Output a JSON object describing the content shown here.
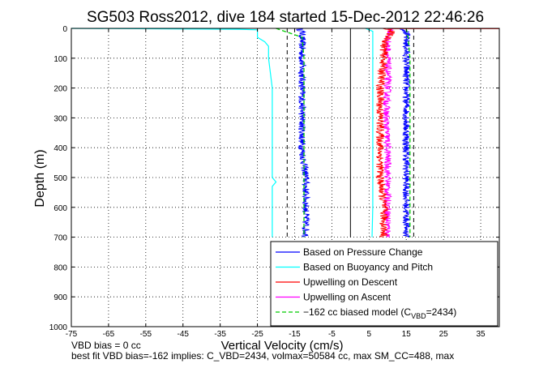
{
  "chart_data": {
    "type": "line",
    "title": "SG503 Ross2012, dive 184 started 15-Dec-2012 22:46:26",
    "xlabel": "Vertical Velocity (cm/s)",
    "ylabel": "Depth (m)",
    "xlim": [
      -75,
      40
    ],
    "ylim": [
      1000,
      0
    ],
    "y_reversed": true,
    "grid": true,
    "grid_style": "dotted",
    "xticks": [
      "-75",
      "-65",
      "-55",
      "-45",
      "-35",
      "-25",
      "-15",
      "-5",
      "5",
      "15",
      "25",
      "35"
    ],
    "xtick_values": [
      -75,
      -65,
      -55,
      -45,
      -35,
      -25,
      -15,
      -5,
      5,
      15,
      25,
      35
    ],
    "yticks": [
      "0",
      "100",
      "200",
      "300",
      "400",
      "500",
      "600",
      "700",
      "800",
      "900",
      "1000"
    ],
    "ytick_values": [
      0,
      100,
      200,
      300,
      400,
      500,
      600,
      700,
      800,
      900,
      1000
    ],
    "legend_position": "bottom-right",
    "legend": [
      {
        "label": "Based on Pressure Change",
        "color": "#0000ff",
        "style": "solid"
      },
      {
        "label": "Based on Buoyancy and Pitch",
        "color": "#00ffff",
        "style": "solid"
      },
      {
        "label": "Upwelling on Descent",
        "color": "#ff0000",
        "style": "solid"
      },
      {
        "label": "Upwelling on Ascent",
        "color": "#ff00ff",
        "style": "solid"
      },
      {
        "label": "−162 cc biased model (C",
        "sub": "VBD",
        "label_tail": "=2434)",
        "color": "#00cc00",
        "style": "dashed"
      }
    ],
    "series": [
      {
        "color": "#0000ff",
        "noise": 1.0,
        "descent": true,
        "depth": [
          0,
          10,
          30,
          60,
          100,
          200,
          300,
          400,
          500,
          600,
          650,
          700
        ],
        "x": [
          -14,
          -13,
          -13,
          -13,
          -13,
          -13,
          -13,
          -13,
          -12,
          -12,
          -12,
          -12
        ]
      },
      {
        "color": "#00ffff",
        "noise": 0.0,
        "descent": true,
        "depth": [
          0,
          3,
          5,
          30,
          45,
          60,
          100,
          200,
          300,
          400,
          500,
          515,
          530,
          600,
          700
        ],
        "x": [
          -75,
          -30,
          -25,
          -25,
          -23,
          -22,
          -22,
          -21,
          -21,
          -21,
          -21,
          -20,
          -21,
          -21,
          -21
        ]
      },
      {
        "color": "#00cc00",
        "noise": 0.0,
        "dashed": true,
        "descent": true,
        "depth": [
          0,
          30,
          100,
          300,
          500,
          700
        ],
        "x": [
          -20,
          -13,
          -12.5,
          -12.5,
          -12.5,
          -12.5
        ]
      },
      {
        "color": "#0000ff",
        "noise": 1.0,
        "depth": [
          0,
          10,
          30,
          60,
          100,
          200,
          300,
          400,
          500,
          600,
          650,
          700
        ],
        "x": [
          14,
          15,
          15,
          15,
          15,
          15,
          15,
          15,
          15,
          15,
          15,
          15
        ]
      },
      {
        "color": "#00ffff",
        "noise": 0.0,
        "depth": [
          0,
          5,
          10,
          30,
          60,
          100,
          300,
          500,
          600,
          700
        ],
        "x": [
          4,
          5,
          6,
          6,
          6,
          6,
          6,
          6,
          6,
          5.8
        ]
      },
      {
        "color": "#00cc00",
        "noise": 0.0,
        "dashed": true,
        "depth": [
          0,
          30,
          100,
          300,
          500,
          700
        ],
        "x": [
          15,
          15.5,
          16,
          16,
          16,
          16
        ]
      },
      {
        "color": "#ff00ff",
        "noise": 1.0,
        "depth": [
          0,
          30,
          60,
          100,
          200,
          300,
          400,
          500,
          600,
          700
        ],
        "x": [
          11,
          10,
          10,
          10,
          10,
          9.5,
          10,
          10,
          10,
          10
        ]
      },
      {
        "color": "#ff0000",
        "noise": 1.1,
        "depth": [
          0,
          10,
          30,
          60,
          100,
          200,
          300,
          400,
          500,
          600,
          700
        ],
        "x": [
          10,
          11,
          10,
          9,
          9,
          8,
          8,
          8,
          8,
          9,
          9
        ]
      }
    ],
    "reference_lines": [
      {
        "x": 0,
        "color": "#000000",
        "style": "solid",
        "from_depth": 0,
        "to_depth": 700
      },
      {
        "x": -17,
        "color": "#000000",
        "style": "dashed",
        "from_depth": 0,
        "to_depth": 700
      },
      {
        "x": 17,
        "color": "#000000",
        "style": "dashed",
        "from_depth": 0,
        "to_depth": 700
      }
    ],
    "surface_lines": [
      {
        "color": "#0000ff",
        "x1": -75,
        "x2": 40,
        "depth": 0
      },
      {
        "color": "#ff0000",
        "x1": 10,
        "x2": 40,
        "depth": 1
      }
    ]
  },
  "notes": {
    "line1": "VBD bias = 0 cc",
    "line2": "best fit VBD bias=-162 implies: C_VBD=2434, volmax=50584 cc, max SM_CC=488, max"
  }
}
